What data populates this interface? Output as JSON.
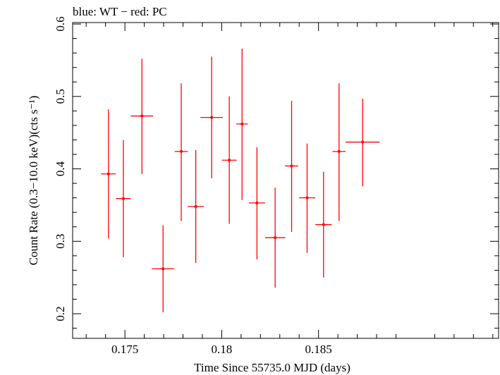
{
  "chart_data": {
    "type": "scatter",
    "title": "blue: WT − red: PC",
    "xlabel": "Time Since 55735.0 MJD (days)",
    "ylabel": "Count Rate (0.3−10.0 keV)(cts s⁻¹)",
    "xlim": [
      0.1723,
      0.1943
    ],
    "ylim": [
      0.166,
      0.602
    ],
    "x_ticks": [
      0.175,
      0.18,
      0.185
    ],
    "x_tick_labels": [
      "0.175",
      "0.18",
      "0.185"
    ],
    "y_ticks": [
      0.2,
      0.3,
      0.4,
      0.5,
      0.6
    ],
    "y_tick_labels": [
      "0.2",
      "0.3",
      "0.4",
      "0.5",
      "0.6"
    ],
    "grid": false,
    "series": [
      {
        "name": "PC",
        "color": "#ff0000",
        "points": [
          {
            "x": 0.17415,
            "y": 0.393,
            "xerr": 0.00038,
            "ylo": 0.304,
            "yhi": 0.482
          },
          {
            "x": 0.17492,
            "y": 0.359,
            "xerr": 0.00038,
            "ylo": 0.278,
            "yhi": 0.44
          },
          {
            "x": 0.17588,
            "y": 0.473,
            "xerr": 0.00058,
            "ylo": 0.393,
            "yhi": 0.552
          },
          {
            "x": 0.17697,
            "y": 0.262,
            "xerr": 0.00058,
            "ylo": 0.202,
            "yhi": 0.322
          },
          {
            "x": 0.17791,
            "y": 0.424,
            "xerr": 0.00034,
            "ylo": 0.328,
            "yhi": 0.518
          },
          {
            "x": 0.17866,
            "y": 0.348,
            "xerr": 0.00042,
            "ylo": 0.27,
            "yhi": 0.426
          },
          {
            "x": 0.17948,
            "y": 0.471,
            "xerr": 0.00058,
            "ylo": 0.387,
            "yhi": 0.555
          },
          {
            "x": 0.18039,
            "y": 0.412,
            "xerr": 0.00038,
            "ylo": 0.324,
            "yhi": 0.5
          },
          {
            "x": 0.18105,
            "y": 0.462,
            "xerr": 0.0003,
            "ylo": 0.357,
            "yhi": 0.566
          },
          {
            "x": 0.18182,
            "y": 0.353,
            "xerr": 0.00042,
            "ylo": 0.275,
            "yhi": 0.43
          },
          {
            "x": 0.18276,
            "y": 0.305,
            "xerr": 0.00052,
            "ylo": 0.236,
            "yhi": 0.374
          },
          {
            "x": 0.18361,
            "y": 0.404,
            "xerr": 0.00034,
            "ylo": 0.313,
            "yhi": 0.494
          },
          {
            "x": 0.18441,
            "y": 0.36,
            "xerr": 0.00042,
            "ylo": 0.284,
            "yhi": 0.435
          },
          {
            "x": 0.18526,
            "y": 0.323,
            "xerr": 0.00042,
            "ylo": 0.25,
            "yhi": 0.396
          },
          {
            "x": 0.18606,
            "y": 0.424,
            "xerr": 0.00034,
            "ylo": 0.328,
            "yhi": 0.518
          },
          {
            "x": 0.18728,
            "y": 0.437,
            "xerr": 0.00088,
            "ylo": 0.376,
            "yhi": 0.497
          }
        ]
      }
    ]
  }
}
